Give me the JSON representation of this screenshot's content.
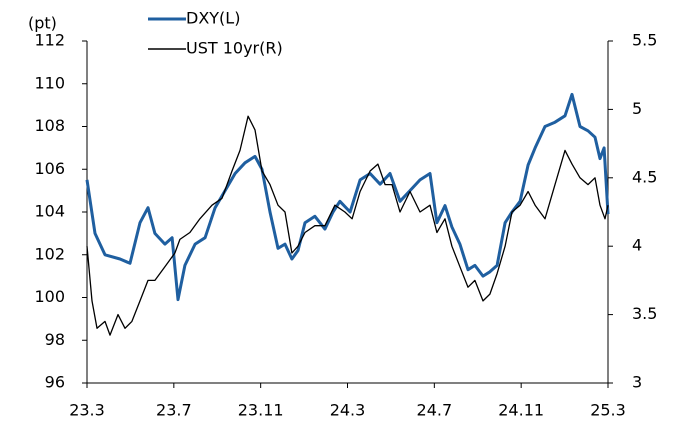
{
  "chart_data": {
    "type": "line",
    "y_unit_label": "(pt)",
    "xlim": [
      0,
      24
    ],
    "xticks": [
      {
        "value": 0,
        "label": "23.3"
      },
      {
        "value": 4,
        "label": "23.7"
      },
      {
        "value": 8,
        "label": "23.11"
      },
      {
        "value": 12,
        "label": "24.3"
      },
      {
        "value": 16,
        "label": "24.7"
      },
      {
        "value": 20,
        "label": "24.11"
      },
      {
        "value": 24,
        "label": "25.3"
      }
    ],
    "ylim": [
      96,
      112
    ],
    "yticks": [
      96,
      98,
      100,
      102,
      104,
      106,
      108,
      110,
      112
    ],
    "y2lim": [
      3,
      5.5
    ],
    "y2ticks": [
      3,
      3.5,
      4,
      4.5,
      5,
      5.5
    ],
    "grid": false,
    "legend": "top-left",
    "series": [
      {
        "name": "DXY(L)",
        "color": "#1f5fa0",
        "axis": "y",
        "x": [
          0,
          0.37,
          0.83,
          1.52,
          1.98,
          2.44,
          2.81,
          3.13,
          3.59,
          3.92,
          4.19,
          4.51,
          4.98,
          5.44,
          5.9,
          6.36,
          6.82,
          7.28,
          7.74,
          8.06,
          8.43,
          8.8,
          9.12,
          9.44,
          9.72,
          10.04,
          10.5,
          10.96,
          11.33,
          11.65,
          12.12,
          12.58,
          13.04,
          13.5,
          13.96,
          14.42,
          14.88,
          15.34,
          15.8,
          16.12,
          16.49,
          16.81,
          17.18,
          17.55,
          17.87,
          18.24,
          18.56,
          18.89,
          19.26,
          19.58,
          19.95,
          20.32,
          20.64,
          21.1,
          21.56,
          22.02,
          22.34,
          22.71,
          23.08,
          23.4,
          23.63,
          23.82,
          24
        ],
        "values": [
          105.5,
          103,
          102,
          101.8,
          101.6,
          103.5,
          104.2,
          103,
          102.5,
          102.8,
          99.9,
          101.5,
          102.5,
          102.8,
          104.2,
          105,
          105.8,
          106.3,
          106.6,
          106,
          104,
          102.3,
          102.5,
          101.8,
          102.2,
          103.5,
          103.8,
          103.2,
          104,
          104.5,
          104,
          105.5,
          105.8,
          105.3,
          105.8,
          104.5,
          105,
          105.5,
          105.8,
          103.5,
          104.3,
          103.3,
          102.5,
          101.3,
          101.5,
          101,
          101.2,
          101.5,
          103.5,
          104,
          104.5,
          106.2,
          107,
          108,
          108.2,
          108.5,
          109.5,
          108,
          107.8,
          107.5,
          106.5,
          107,
          103.9
        ]
      },
      {
        "name": "UST 10yr(R)",
        "color": "#000000",
        "axis": "y2",
        "x": [
          0,
          0.23,
          0.46,
          0.83,
          1.06,
          1.43,
          1.75,
          2.07,
          2.44,
          2.81,
          3.13,
          3.59,
          4.05,
          4.28,
          4.74,
          5.2,
          5.76,
          6.22,
          6.68,
          7.05,
          7.42,
          7.74,
          8.06,
          8.43,
          8.8,
          9.12,
          9.44,
          9.72,
          10.04,
          10.5,
          10.96,
          11.42,
          11.88,
          12.21,
          12.58,
          13.04,
          13.4,
          13.73,
          14.05,
          14.42,
          14.88,
          15.34,
          15.8,
          16.12,
          16.49,
          16.81,
          17.18,
          17.55,
          17.87,
          18.24,
          18.56,
          18.89,
          19.26,
          19.58,
          19.95,
          20.32,
          20.64,
          21.1,
          21.56,
          22.02,
          22.34,
          22.71,
          23.08,
          23.4,
          23.63,
          23.86,
          24
        ],
        "values": [
          4.0,
          3.6,
          3.4,
          3.45,
          3.35,
          3.5,
          3.4,
          3.45,
          3.6,
          3.75,
          3.75,
          3.85,
          3.95,
          4.05,
          4.1,
          4.2,
          4.3,
          4.35,
          4.55,
          4.7,
          4.95,
          4.85,
          4.55,
          4.45,
          4.3,
          4.25,
          3.95,
          4.0,
          4.1,
          4.15,
          4.15,
          4.3,
          4.25,
          4.2,
          4.4,
          4.55,
          4.6,
          4.45,
          4.45,
          4.25,
          4.4,
          4.25,
          4.3,
          4.1,
          4.2,
          4.0,
          3.85,
          3.7,
          3.75,
          3.6,
          3.65,
          3.8,
          4.0,
          4.25,
          4.3,
          4.4,
          4.3,
          4.2,
          4.45,
          4.7,
          4.6,
          4.5,
          4.45,
          4.5,
          4.3,
          4.2,
          4.3
        ]
      }
    ]
  }
}
